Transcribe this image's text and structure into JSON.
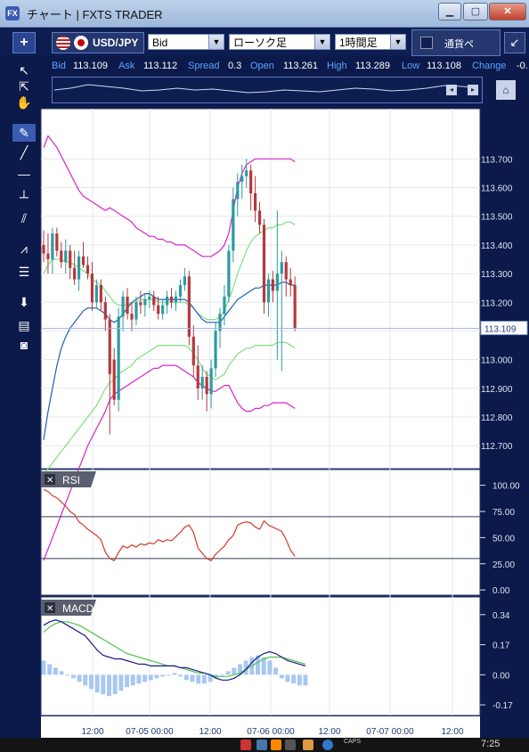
{
  "window": {
    "title": "チャート | FXTS TRADER"
  },
  "toolbar": {
    "add_label": "+",
    "pair": "USD/JPY",
    "price_type": "Bid",
    "chart_type": "ローソク足",
    "timeframe": "1時間足",
    "currency_label": "通貨ペ",
    "collapse_icon": "↙"
  },
  "quote": {
    "bid_label": "Bid",
    "bid": "113.109",
    "ask_label": "Ask",
    "ask": "113.112",
    "spread_label": "Spread",
    "spread": "0.3",
    "open_label": "Open",
    "open": "113.261",
    "high_label": "High",
    "high": "113.289",
    "low_label": "Low",
    "low": "113.108",
    "change_label": "Change",
    "change": "-0."
  },
  "indicators": {
    "rsi_label": "RSI",
    "macd_label": "MACD"
  },
  "status": {
    "time": "7:25",
    "caps": "CAPS"
  },
  "colors": {
    "background": "#0b1a4a",
    "plot": "#ffffff",
    "up_candle": "#2d9aa0",
    "down_candle": "#b5383d",
    "bb_outer": "#d626c6",
    "bb_inner": "#7fe07f",
    "ma": "#1f5fb4",
    "rsi": "#d23a2a",
    "macd": "#1b1b8a",
    "signal": "#4ec34e",
    "histogram": "#a8c8f0"
  },
  "chart_data": [
    {
      "type": "candlestick",
      "name": "price",
      "ylim": [
        112.62,
        113.875
      ],
      "yticks": [
        112.7,
        112.8,
        112.9,
        113.0,
        113.1,
        113.2,
        113.3,
        113.4,
        113.5,
        113.6,
        113.7
      ],
      "ytick_labels": [
        "112.700",
        "112.800",
        "112.900",
        "113.000",
        "113.100",
        "113.200",
        "113.300",
        "113.400",
        "113.500",
        "113.600",
        "113.700"
      ],
      "current_price": 113.109,
      "current_price_label": "113.109",
      "x_labels": [
        "12:00",
        "07-05 00:00",
        "12:00",
        "07-06 00:00",
        "12:00",
        "07-07 00:00",
        "12:00"
      ],
      "candles": [
        [
          113.4,
          113.45,
          113.34,
          113.37
        ],
        [
          113.37,
          113.44,
          113.3,
          113.35
        ],
        [
          113.35,
          113.46,
          113.3,
          113.44
        ],
        [
          113.44,
          113.46,
          113.36,
          113.38
        ],
        [
          113.38,
          113.41,
          113.32,
          113.34
        ],
        [
          113.34,
          113.42,
          113.3,
          113.38
        ],
        [
          113.38,
          113.4,
          113.28,
          113.32
        ],
        [
          113.32,
          113.38,
          113.26,
          113.28
        ],
        [
          113.28,
          113.38,
          113.24,
          113.36
        ],
        [
          113.36,
          113.41,
          113.32,
          113.33
        ],
        [
          113.33,
          113.36,
          113.28,
          113.3
        ],
        [
          113.3,
          113.34,
          113.17,
          113.2
        ],
        [
          113.2,
          113.28,
          113.18,
          113.26
        ],
        [
          113.26,
          113.28,
          113.17,
          113.2
        ],
        [
          113.2,
          113.22,
          113.1,
          113.14
        ],
        [
          113.14,
          113.16,
          112.74,
          112.95
        ],
        [
          113.0,
          113.04,
          112.84,
          112.86
        ],
        [
          112.86,
          113.18,
          112.82,
          113.15
        ],
        [
          113.15,
          113.24,
          113.1,
          113.22
        ],
        [
          113.22,
          113.25,
          113.14,
          113.16
        ],
        [
          113.16,
          113.2,
          113.1,
          113.14
        ],
        [
          113.14,
          113.22,
          113.12,
          113.2
        ],
        [
          113.2,
          113.24,
          113.16,
          113.19
        ],
        [
          113.19,
          113.23,
          113.15,
          113.21
        ],
        [
          113.21,
          113.24,
          113.18,
          113.22
        ],
        [
          113.22,
          113.24,
          113.17,
          113.19
        ],
        [
          113.19,
          113.22,
          113.14,
          113.16
        ],
        [
          113.16,
          113.21,
          113.14,
          113.19
        ],
        [
          113.19,
          113.24,
          113.16,
          113.22
        ],
        [
          113.22,
          113.25,
          113.18,
          113.2
        ],
        [
          113.2,
          113.24,
          113.17,
          113.22
        ],
        [
          113.22,
          113.28,
          113.2,
          113.26
        ],
        [
          113.26,
          113.32,
          113.24,
          113.29
        ],
        [
          113.29,
          113.31,
          113.05,
          113.08
        ],
        [
          113.08,
          113.12,
          112.94,
          112.98
        ],
        [
          112.98,
          113.05,
          112.86,
          112.9
        ],
        [
          112.9,
          112.98,
          112.86,
          112.94
        ],
        [
          112.94,
          112.96,
          112.82,
          112.88
        ],
        [
          112.88,
          113.0,
          112.83,
          112.97
        ],
        [
          112.97,
          113.13,
          112.94,
          113.1
        ],
        [
          113.1,
          113.18,
          113.04,
          113.16
        ],
        [
          113.16,
          113.26,
          113.12,
          113.22
        ],
        [
          113.22,
          113.4,
          113.2,
          113.38
        ],
        [
          113.38,
          113.6,
          113.34,
          113.56
        ],
        [
          113.56,
          113.65,
          113.5,
          113.62
        ],
        [
          113.62,
          113.68,
          113.56,
          113.64
        ],
        [
          113.64,
          113.7,
          113.6,
          113.66
        ],
        [
          113.66,
          113.68,
          113.52,
          113.58
        ],
        [
          113.58,
          113.64,
          113.48,
          113.52
        ],
        [
          113.52,
          113.55,
          113.44,
          113.47
        ],
        [
          113.47,
          113.49,
          113.16,
          113.2
        ],
        [
          113.2,
          113.3,
          113.15,
          113.28
        ],
        [
          113.28,
          113.31,
          113.2,
          113.24
        ],
        [
          113.24,
          113.52,
          113.0,
          113.3
        ],
        [
          113.3,
          113.38,
          112.96,
          113.34
        ],
        [
          113.34,
          113.36,
          113.22,
          113.28
        ],
        [
          113.28,
          113.32,
          113.22,
          113.26
        ],
        [
          113.26,
          113.29,
          113.1,
          113.11
        ]
      ],
      "bb_upper": [
        113.74,
        113.78,
        113.76,
        113.74,
        113.71,
        113.68,
        113.65,
        113.62,
        113.59,
        113.57,
        113.56,
        113.55,
        113.54,
        113.53,
        113.52,
        113.53,
        113.52,
        113.51,
        113.5,
        113.49,
        113.48,
        113.46,
        113.45,
        113.44,
        113.43,
        113.43,
        113.42,
        113.42,
        113.41,
        113.41,
        113.4,
        113.4,
        113.4,
        113.39,
        113.38,
        113.37,
        113.36,
        113.36,
        113.36,
        113.37,
        113.38,
        113.4,
        113.44,
        113.52,
        113.6,
        113.65,
        113.68,
        113.69,
        113.7,
        113.7,
        113.7,
        113.7,
        113.7,
        113.7,
        113.7,
        113.7,
        113.7,
        113.69
      ],
      "bb_mid": [
        113.3,
        113.33,
        113.35,
        113.35,
        113.35,
        113.34,
        113.34,
        113.33,
        113.32,
        113.31,
        113.3,
        113.28,
        113.27,
        113.26,
        113.24,
        113.22,
        113.2,
        113.19,
        113.19,
        113.19,
        113.2,
        113.2,
        113.21,
        113.21,
        113.21,
        113.21,
        113.2,
        113.2,
        113.2,
        113.2,
        113.2,
        113.2,
        113.2,
        113.19,
        113.18,
        113.16,
        113.15,
        113.14,
        113.14,
        113.14,
        113.15,
        113.17,
        113.21,
        113.25,
        113.3,
        113.34,
        113.38,
        113.41,
        113.43,
        113.44,
        113.45,
        113.46,
        113.46,
        113.47,
        113.47,
        113.48,
        113.48,
        113.47
      ],
      "ma": [
        112.72,
        112.82,
        112.9,
        112.98,
        113.04,
        113.08,
        113.11,
        113.13,
        113.15,
        113.17,
        113.18,
        113.18,
        113.18,
        113.17,
        113.16,
        113.14,
        113.13,
        113.14,
        113.16,
        113.18,
        113.2,
        113.21,
        113.22,
        113.23,
        113.23,
        113.22,
        113.21,
        113.21,
        113.21,
        113.21,
        113.21,
        113.21,
        113.21,
        113.2,
        113.18,
        113.16,
        113.14,
        113.13,
        113.13,
        113.13,
        113.13,
        113.15,
        113.17,
        113.19,
        113.21,
        113.22,
        113.23,
        113.24,
        113.25,
        113.25,
        113.26,
        113.26,
        113.26,
        113.26,
        113.27,
        113.27,
        113.26,
        113.26
      ],
      "bb_lower": [
        112.6,
        112.62,
        112.64,
        112.66,
        112.68,
        112.7,
        112.72,
        112.74,
        112.76,
        112.78,
        112.8,
        112.82,
        112.84,
        112.87,
        112.9,
        112.92,
        112.93,
        112.95,
        112.96,
        112.97,
        112.98,
        113.0,
        113.01,
        113.02,
        113.03,
        113.04,
        113.05,
        113.05,
        113.05,
        113.05,
        113.05,
        113.05,
        113.05,
        113.04,
        113.02,
        113.0,
        112.97,
        112.95,
        112.94,
        112.93,
        112.94,
        112.95,
        112.98,
        113.0,
        113.02,
        113.03,
        113.04,
        113.04,
        113.05,
        113.05,
        113.05,
        113.05,
        113.05,
        113.06,
        113.06,
        113.06,
        113.05,
        113.04
      ],
      "bb_lower2": [
        112.3,
        112.34,
        112.38,
        112.42,
        112.46,
        112.5,
        112.54,
        112.58,
        112.62,
        112.66,
        112.7,
        112.73,
        112.76,
        112.79,
        112.82,
        112.86,
        112.88,
        112.89,
        112.9,
        112.91,
        112.92,
        112.93,
        112.94,
        112.95,
        112.96,
        112.97,
        112.97,
        112.98,
        112.98,
        112.98,
        112.98,
        112.97,
        112.96,
        112.95,
        112.94,
        112.92,
        112.91,
        112.9,
        112.89,
        112.89,
        112.9,
        112.91,
        112.91,
        112.88,
        112.85,
        112.83,
        112.82,
        112.82,
        112.83,
        112.83,
        112.84,
        112.84,
        112.85,
        112.85,
        112.85,
        112.85,
        112.84,
        112.83
      ]
    },
    {
      "type": "line",
      "name": "RSI",
      "ylim": [
        -5,
        115
      ],
      "yticks": [
        0,
        25,
        50,
        75,
        100
      ],
      "ytick_labels": [
        "0.00",
        "25.00",
        "50.00",
        "75.00",
        "100.00"
      ],
      "levels": [
        70,
        30
      ],
      "values": [
        96,
        94,
        90,
        88,
        84,
        80,
        75,
        72,
        65,
        62,
        58,
        55,
        52,
        48,
        36,
        30,
        28,
        36,
        42,
        40,
        43,
        41,
        44,
        43,
        45,
        44,
        48,
        46,
        48,
        47,
        51,
        55,
        60,
        62,
        55,
        40,
        35,
        30,
        28,
        34,
        38,
        42,
        48,
        52,
        62,
        64,
        65,
        64,
        60,
        58,
        66,
        62,
        60,
        58,
        56,
        48,
        38,
        32
      ],
      "line_color": "#d23a2a"
    },
    {
      "type": "bar+line",
      "name": "MACD",
      "ylim": [
        -0.23,
        0.44
      ],
      "yticks": [
        0.34,
        0.17,
        0.0,
        -0.17
      ],
      "ytick_labels": [
        "0.34",
        "0.17",
        "0.00",
        "-0.17"
      ],
      "macd": [
        0.28,
        0.3,
        0.31,
        0.3,
        0.28,
        0.26,
        0.24,
        0.22,
        0.18,
        0.14,
        0.11,
        0.1,
        0.09,
        0.09,
        0.08,
        0.07,
        0.06,
        0.06,
        0.05,
        0.05,
        0.05,
        0.05,
        0.05,
        0.04,
        0.04,
        0.03,
        0.02,
        0.01,
        0.0,
        -0.02,
        -0.03,
        -0.03,
        -0.02,
        0.0,
        0.03,
        0.07,
        0.1,
        0.12,
        0.13,
        0.12,
        0.1,
        0.08,
        0.07,
        0.06,
        0.05
      ],
      "signal": [
        0.24,
        0.27,
        0.29,
        0.3,
        0.3,
        0.29,
        0.28,
        0.26,
        0.24,
        0.22,
        0.2,
        0.18,
        0.16,
        0.14,
        0.12,
        0.11,
        0.1,
        0.09,
        0.08,
        0.07,
        0.06,
        0.05,
        0.05,
        0.04,
        0.03,
        0.02,
        0.01,
        0.01,
        0.0,
        -0.01,
        -0.01,
        -0.01,
        0.0,
        0.01,
        0.03,
        0.05,
        0.07,
        0.09,
        0.1,
        0.1,
        0.1,
        0.09,
        0.08,
        0.07,
        0.06
      ],
      "histogram": [
        0.08,
        0.06,
        0.04,
        0.02,
        0.0,
        -0.02,
        -0.04,
        -0.06,
        -0.08,
        -0.1,
        -0.11,
        -0.12,
        -0.11,
        -0.09,
        -0.07,
        -0.06,
        -0.05,
        -0.04,
        -0.03,
        -0.02,
        -0.01,
        0.0,
        0.01,
        -0.01,
        -0.03,
        -0.04,
        -0.05,
        -0.05,
        -0.04,
        -0.02,
        0.0,
        0.02,
        0.04,
        0.06,
        0.08,
        0.1,
        0.11,
        0.1,
        0.08,
        0.04,
        -0.02,
        -0.04,
        -0.05,
        -0.06,
        -0.06
      ]
    }
  ]
}
